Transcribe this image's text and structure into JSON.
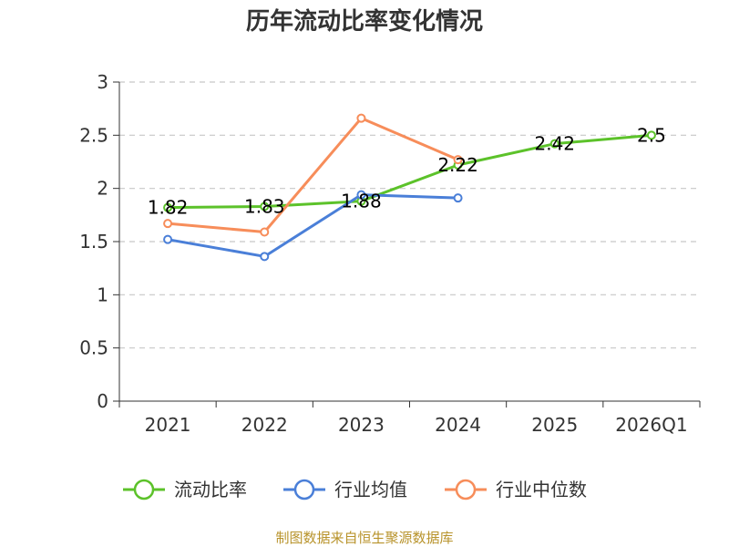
{
  "chart_data": {
    "type": "line",
    "title": "历年流动比率变化情况",
    "categories": [
      "2021",
      "2022",
      "2023",
      "2024",
      "2025",
      "2026Q1"
    ],
    "ylim": [
      0,
      3
    ],
    "yticks": [
      "0",
      "0.5",
      "1",
      "1.5",
      "2",
      "2.5",
      "3"
    ],
    "ytick_values": [
      0,
      0.5,
      1,
      1.5,
      2,
      2.5,
      3
    ],
    "grid": true,
    "legend_position": "bottom",
    "series": [
      {
        "name": "流动比率",
        "color": "#5cc22a",
        "values": [
          1.82,
          1.83,
          1.88,
          2.22,
          2.42,
          2.5
        ],
        "labels": [
          "1.82",
          "1.83",
          "1.88",
          "2.22",
          "2.42",
          "2.5"
        ]
      },
      {
        "name": "行业均值",
        "color": "#4a7fd8",
        "values": [
          1.52,
          1.36,
          1.94,
          1.91,
          null,
          null
        ]
      },
      {
        "name": "行业中位数",
        "color": "#f78d5a",
        "values": [
          1.67,
          1.59,
          2.66,
          2.27,
          null,
          null
        ]
      }
    ]
  },
  "footer": {
    "source": "制图数据来自恒生聚源数据库"
  }
}
